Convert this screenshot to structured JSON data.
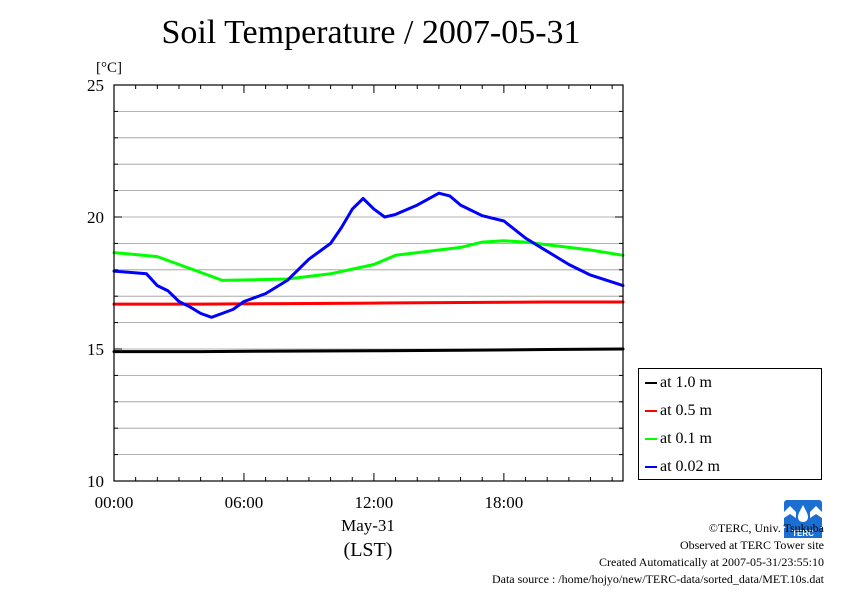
{
  "page": {
    "ylabel_unit": "[°C]",
    "date_label": "May-31",
    "tz_label": "(LST)"
  },
  "logo": {
    "text": "TERC",
    "color": "#1a6fd0"
  },
  "credits": {
    "copyright": "©TERC, Univ. Tsukuba",
    "observed": "Observed at TERC Tower site",
    "created": "Created Automatically at 2007-05-31/23:55:10",
    "source": "Data source : /home/hojyo/new/TERC-data/sorted_data/MET.10s.dat"
  },
  "chart_data": {
    "type": "line",
    "title": "Soil Temperature / 2007-05-31",
    "ylabel": "[°C]",
    "xlabel": "May-31",
    "ylim": [
      10,
      25
    ],
    "xlim": [
      0,
      23.5
    ],
    "x_ticks": [
      0,
      6,
      12,
      18
    ],
    "x_tick_labels": [
      "00:00",
      "06:00",
      "12:00",
      "18:00"
    ],
    "y_ticks": [
      10,
      15,
      20,
      25
    ],
    "grid": true,
    "legend_position": "bottom-right, outside",
    "series": [
      {
        "name": "at 1.0 m",
        "color": "#000000",
        "x": [
          0,
          4,
          8,
          12,
          16,
          20,
          23.5
        ],
        "y": [
          14.9,
          14.9,
          14.92,
          14.93,
          14.95,
          14.98,
          15.0
        ]
      },
      {
        "name": "at 0.5 m",
        "color": "#ff0000",
        "x": [
          0,
          4,
          8,
          12,
          16,
          20,
          23.5
        ],
        "y": [
          16.7,
          16.7,
          16.72,
          16.74,
          16.76,
          16.78,
          16.78
        ]
      },
      {
        "name": "at 0.1 m",
        "color": "#00ff00",
        "x": [
          0,
          2,
          3,
          4,
          5,
          8,
          10,
          12,
          13,
          15,
          16,
          17,
          18,
          19,
          20,
          22,
          23.5
        ],
        "y": [
          18.65,
          18.5,
          18.2,
          17.9,
          17.6,
          17.65,
          17.85,
          18.2,
          18.55,
          18.75,
          18.85,
          19.05,
          19.1,
          19.05,
          18.95,
          18.75,
          18.55
        ]
      },
      {
        "name": "at 0.02 m",
        "color": "#0000ff",
        "x": [
          0,
          1.5,
          2,
          2.5,
          3,
          3.5,
          4,
          4.5,
          5,
          5.5,
          6,
          7,
          8,
          9,
          10,
          10.5,
          11,
          11.5,
          12,
          12.5,
          13,
          14,
          15,
          15.5,
          16,
          17,
          18,
          19,
          20,
          21,
          22,
          23.5
        ],
        "y": [
          17.95,
          17.85,
          17.4,
          17.2,
          16.8,
          16.6,
          16.35,
          16.2,
          16.35,
          16.5,
          16.8,
          17.1,
          17.6,
          18.4,
          19.0,
          19.6,
          20.3,
          20.7,
          20.3,
          20.0,
          20.1,
          20.45,
          20.9,
          20.8,
          20.45,
          20.05,
          19.85,
          19.2,
          18.7,
          18.2,
          17.8,
          17.4
        ]
      }
    ]
  }
}
